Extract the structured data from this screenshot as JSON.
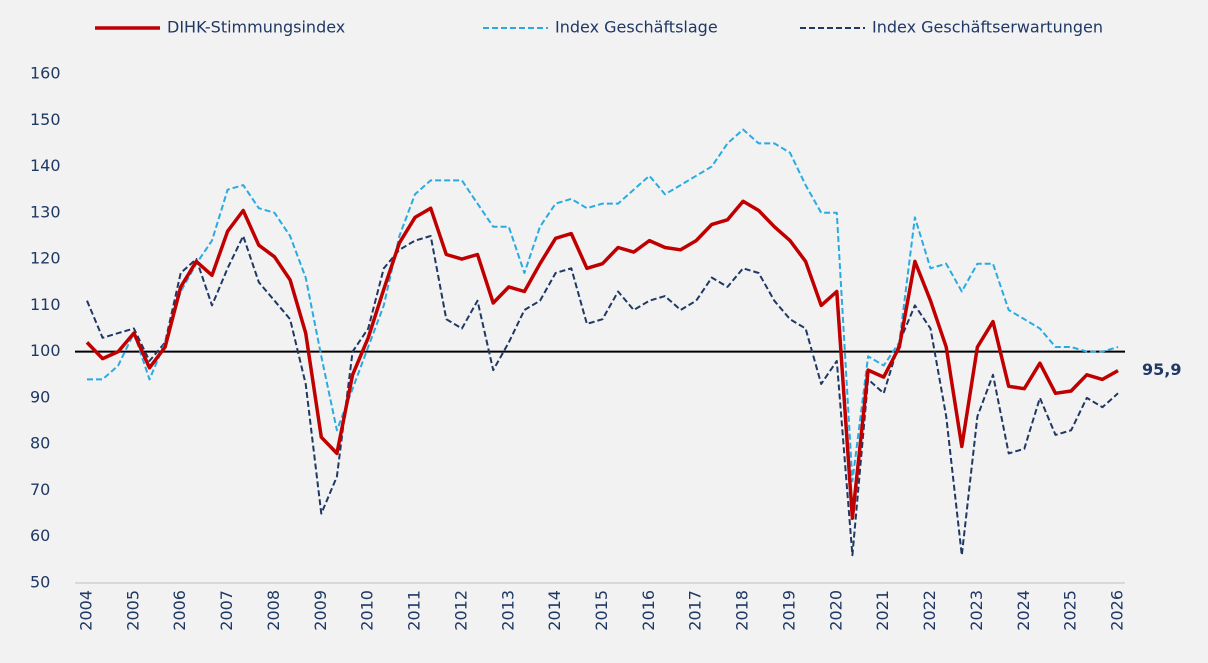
{
  "chart_data": {
    "type": "line",
    "categories": [
      "2004",
      null,
      null,
      "2005",
      null,
      null,
      "2006",
      null,
      null,
      "2007",
      null,
      null,
      "2008",
      null,
      null,
      "2009",
      null,
      null,
      "2010",
      null,
      null,
      "2011",
      null,
      null,
      "2012",
      null,
      null,
      "2013",
      null,
      null,
      "2014",
      null,
      null,
      "2015",
      null,
      null,
      "2016",
      null,
      null,
      "2017",
      null,
      null,
      "2018",
      null,
      null,
      "2019",
      null,
      null,
      "2020",
      null,
      null,
      "2021",
      null,
      null,
      "2022",
      null,
      null,
      "2023",
      null,
      null,
      "2024",
      null,
      null,
      "2025",
      null,
      null,
      "2026"
    ],
    "series": [
      {
        "name": "DIHK-Stimmungsindex",
        "color": "#c00000",
        "style": "solid",
        "values": [
          102,
          98.5,
          100,
          104,
          96.5,
          101,
          114,
          119.5,
          116.5,
          126,
          130.5,
          123,
          120.5,
          115.5,
          104,
          81.5,
          78,
          95,
          103,
          113.5,
          123.5,
          129,
          131,
          121,
          120,
          121,
          110.5,
          114,
          113,
          119,
          124.5,
          125.5,
          118,
          119,
          122.5,
          121.5,
          124,
          122.5,
          122,
          124,
          127.5,
          128.5,
          132.5,
          130.5,
          127,
          124,
          119.5,
          110,
          113,
          64,
          96,
          94.5,
          101,
          119.5,
          111,
          101,
          79.5,
          101,
          106.5,
          92.5,
          92,
          97.5,
          91,
          91.5,
          95,
          94,
          95.9
        ],
        "value_labels": [
          null,
          null,
          null,
          null,
          null,
          null,
          null,
          null,
          null,
          null,
          null,
          null,
          null,
          null,
          null,
          null,
          null,
          null,
          null,
          null,
          null,
          null,
          null,
          null,
          null,
          null,
          null,
          null,
          null,
          null,
          null,
          null,
          null,
          null,
          null,
          null,
          null,
          null,
          null,
          null,
          null,
          null,
          null,
          null,
          null,
          null,
          null,
          null,
          null,
          null,
          null,
          null,
          null,
          null,
          null,
          null,
          null,
          null,
          null,
          null,
          null,
          null,
          null,
          null,
          null,
          null,
          "95,9"
        ]
      },
      {
        "name": "Index Geschäftslage",
        "color": "#29abe2",
        "style": "dashed",
        "values": [
          94,
          94,
          97,
          104,
          94,
          102,
          113,
          119,
          124,
          135,
          136,
          131,
          130,
          125,
          116,
          99,
          83,
          92,
          101,
          110,
          125,
          134,
          137,
          137,
          137,
          132,
          127,
          127,
          117,
          127,
          132,
          133,
          131,
          132,
          132,
          135,
          138,
          134,
          136,
          138,
          140,
          145,
          148,
          145,
          145,
          143,
          136,
          130,
          130,
          72,
          99,
          97,
          102,
          129,
          118,
          119,
          113,
          119,
          119,
          109,
          107,
          105,
          101,
          101,
          100,
          100,
          101
        ]
      },
      {
        "name": "Index Geschäftserwartungen",
        "color": "#1f3864",
        "style": "dashed",
        "values": [
          111,
          103,
          104,
          105,
          98,
          102,
          117,
          120,
          110,
          118,
          125,
          115,
          111,
          107,
          93,
          65,
          73,
          100,
          105,
          118,
          122,
          124,
          125,
          107,
          105,
          111,
          96,
          102,
          109,
          111,
          117,
          118,
          106,
          107,
          113,
          109,
          111,
          112,
          109,
          111,
          116,
          114,
          118,
          117,
          111,
          107,
          105,
          93,
          98,
          56,
          94,
          91,
          102,
          110,
          105,
          86,
          56,
          86,
          95,
          78,
          79,
          90,
          82,
          83,
          90,
          88,
          91
        ]
      }
    ],
    "ylim": [
      50,
      160
    ],
    "yticks": [
      50,
      60,
      70,
      80,
      90,
      100,
      110,
      120,
      130,
      140,
      150,
      160
    ],
    "reference_line": 100,
    "grid": false,
    "legend": "top"
  }
}
